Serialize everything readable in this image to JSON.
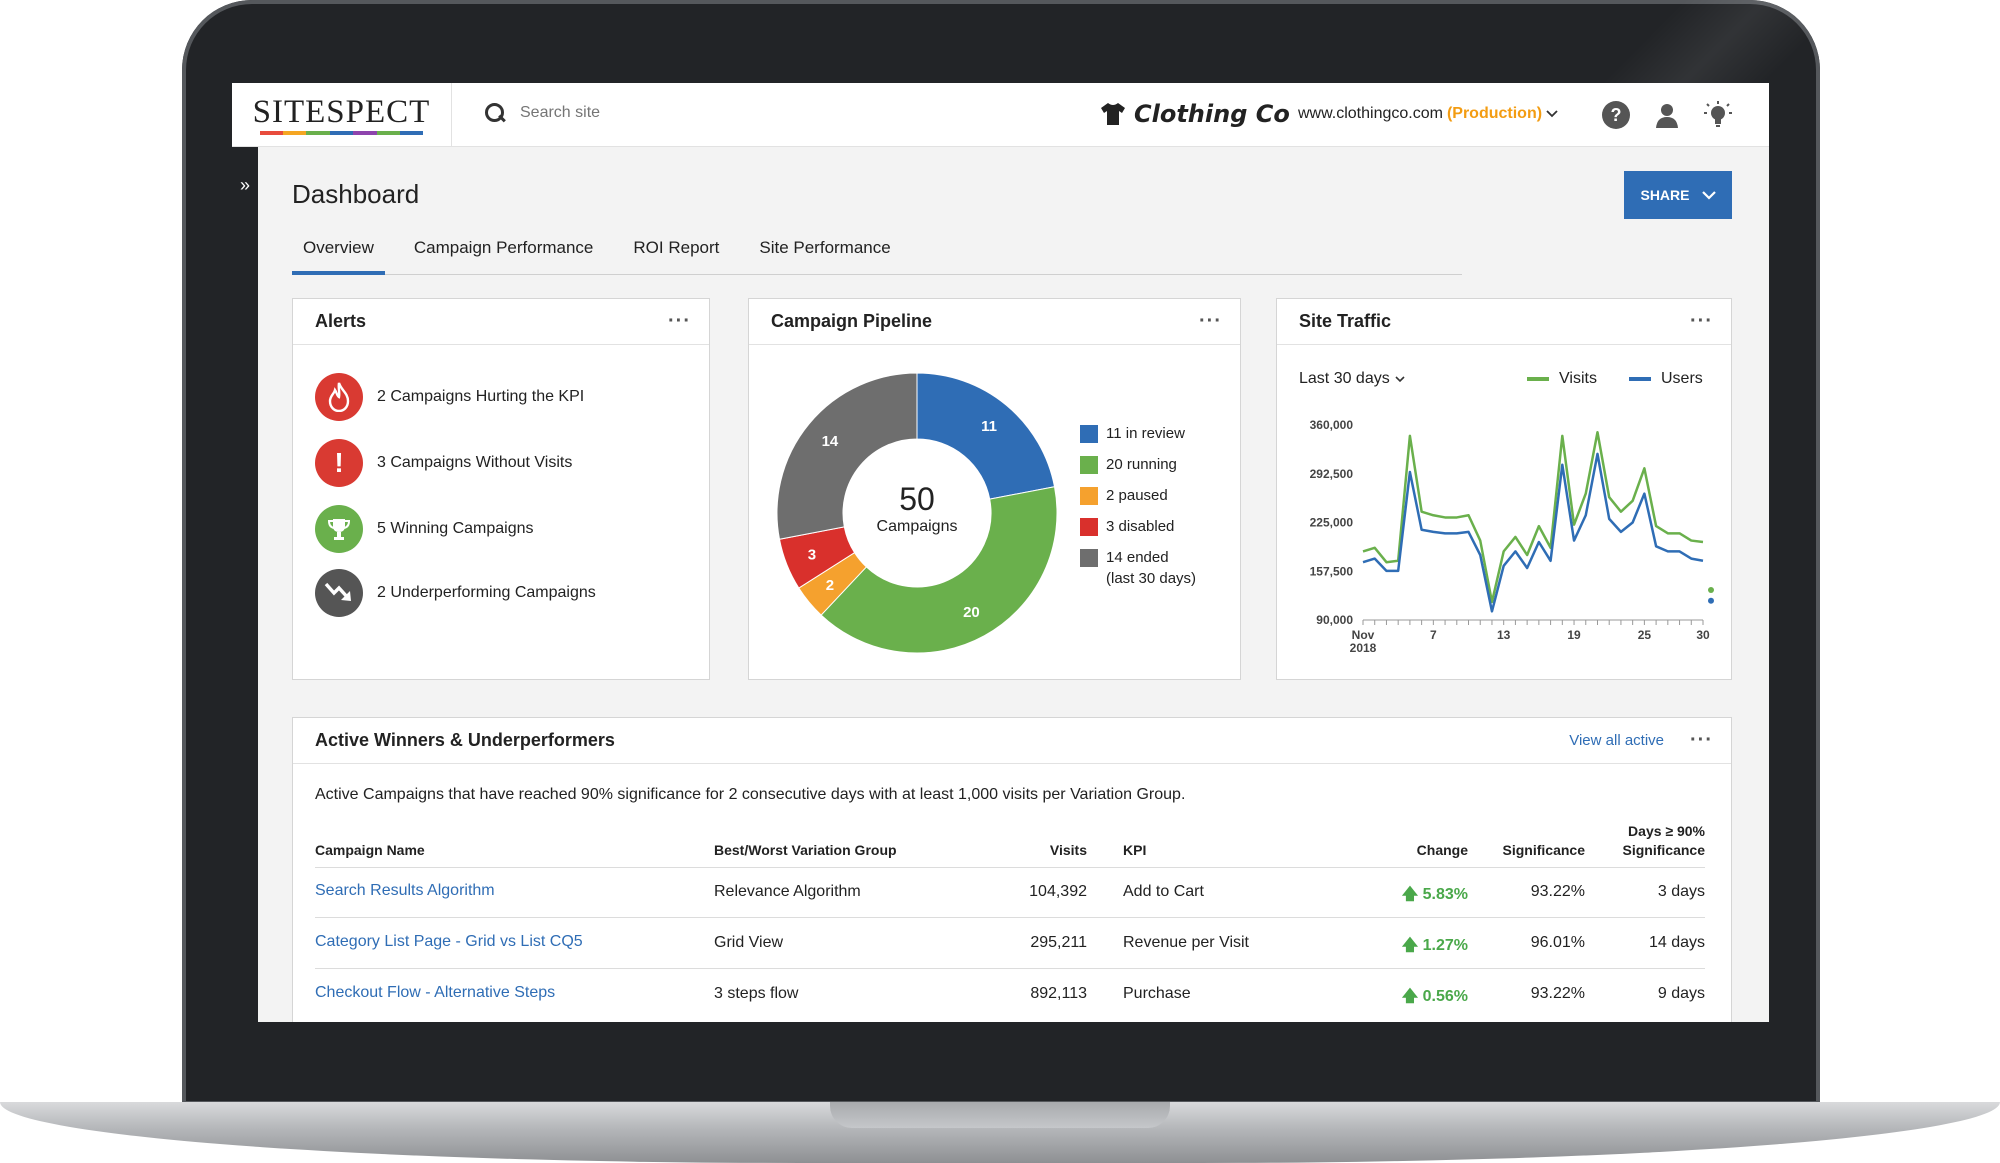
{
  "header": {
    "logo": "SITESPECT",
    "logo_bar_colors": [
      "#e84c3d",
      "#f5a623",
      "#6ab04c",
      "#2f6db5",
      "#8e44ad",
      "#6ab04c",
      "#2f6db5"
    ],
    "search_placeholder": "Search site",
    "brand_name": "Clothing Co",
    "site_url": "www.clothingco.com",
    "site_env": "(Production)",
    "help_icon": "question-circle-icon",
    "user_icon": "user-icon",
    "idea_icon": "lightbulb-icon"
  },
  "sidebar": {
    "toggle": "»"
  },
  "page": {
    "title": "Dashboard",
    "share_label": "SHARE",
    "tabs": [
      {
        "label": "Overview",
        "active": true
      },
      {
        "label": "Campaign Performance",
        "active": false
      },
      {
        "label": "ROI Report",
        "active": false
      },
      {
        "label": "Site Performance",
        "active": false
      }
    ]
  },
  "alerts": {
    "title": "Alerts",
    "items": [
      {
        "label": "2 Campaigns Hurting the KPI",
        "icon": "flame-icon",
        "color": "#d93a32"
      },
      {
        "label": "3 Campaigns Without Visits",
        "icon": "exclamation-icon",
        "color": "#d93a32"
      },
      {
        "label": "5 Winning Campaigns",
        "icon": "trophy-icon",
        "color": "#6ab04c"
      },
      {
        "label": "2 Underperforming Campaigns",
        "icon": "trend-down-icon",
        "color": "#555555"
      }
    ]
  },
  "pipeline": {
    "title": "Campaign Pipeline",
    "center_value": "50",
    "center_label": "Campaigns",
    "legend": [
      {
        "label": "11 in review",
        "color": "#2f6db5"
      },
      {
        "label": "20 running",
        "color": "#6ab04c"
      },
      {
        "label": "2 paused",
        "color": "#f5a12e"
      },
      {
        "label": "3 disabled",
        "color": "#d9302c"
      },
      {
        "label": "14 ended",
        "sub": "(last 30 days)",
        "color": "#6e6e6e"
      }
    ]
  },
  "traffic": {
    "title": "Site Traffic",
    "range_label": "Last 30 days",
    "legend": [
      {
        "name": "Visits",
        "color": "#6ab04c"
      },
      {
        "name": "Users",
        "color": "#2f6db5"
      }
    ]
  },
  "chart_data": [
    {
      "type": "pie",
      "title": "Campaign Pipeline",
      "categories": [
        "in review",
        "running",
        "paused",
        "disabled",
        "ended"
      ],
      "values": [
        11,
        20,
        2,
        3,
        14
      ],
      "colors": [
        "#2f6db5",
        "#6ab04c",
        "#f5a12e",
        "#d9302c",
        "#6e6e6e"
      ],
      "donut": true
    },
    {
      "type": "line",
      "title": "Site Traffic",
      "x": [
        1,
        2,
        3,
        4,
        5,
        6,
        7,
        8,
        9,
        10,
        11,
        12,
        13,
        14,
        15,
        16,
        17,
        18,
        19,
        20,
        21,
        22,
        23,
        24,
        25,
        26,
        27,
        28,
        29,
        30
      ],
      "xticks": [
        "Nov\n2018",
        "7",
        "13",
        "19",
        "25",
        "30"
      ],
      "xtick_positions": [
        1,
        7,
        13,
        19,
        25,
        30
      ],
      "yticks": [
        "360,000",
        "292,500",
        "225,000",
        "157,500",
        "90,000"
      ],
      "ytick_values": [
        360000,
        292500,
        225000,
        157500,
        90000
      ],
      "ylim": [
        90000,
        360000
      ],
      "grid": false,
      "series": [
        {
          "name": "Visits",
          "color": "#6ab04c",
          "values": [
            185000,
            190000,
            170000,
            172000,
            345000,
            240000,
            235000,
            232000,
            232000,
            235000,
            200000,
            115000,
            185000,
            205000,
            180000,
            220000,
            190000,
            345000,
            222000,
            265000,
            350000,
            260000,
            240000,
            255000,
            300000,
            220000,
            210000,
            210000,
            200000,
            198000
          ]
        },
        {
          "name": "Users",
          "color": "#2f6db5",
          "values": [
            170000,
            175000,
            158000,
            158000,
            295000,
            215000,
            212000,
            210000,
            210000,
            212000,
            180000,
            102000,
            165000,
            185000,
            162000,
            198000,
            172000,
            305000,
            200000,
            235000,
            320000,
            230000,
            212000,
            225000,
            265000,
            192000,
            185000,
            185000,
            175000,
            172000
          ]
        }
      ]
    }
  ],
  "winners": {
    "title": "Active Winners & Underperformers",
    "view_all": "View all active",
    "description": "Active Campaigns that have reached 90% significance for 2 consecutive days with at least 1,000 visits per Variation Group.",
    "columns": {
      "name": "Campaign Name",
      "group": "Best/Worst Variation Group",
      "visits": "Visits",
      "kpi": "KPI",
      "change": "Change",
      "significance": "Significance",
      "days_line1": "Days ≥ 90%",
      "days_line2": "Significance"
    },
    "rows": [
      {
        "name": "Search Results Algorithm",
        "group": "Relevance Algorithm",
        "visits": "104,392",
        "kpi": "Add to Cart",
        "change": "5.83%",
        "significance": "93.22%",
        "days": "3 days"
      },
      {
        "name": "Category List Page - Grid vs List CQ5",
        "group": "Grid View",
        "visits": "295,211",
        "kpi": "Revenue per Visit",
        "change": "1.27%",
        "significance": "96.01%",
        "days": "14 days"
      },
      {
        "name": "Checkout Flow - Alternative Steps",
        "group": "3 steps flow",
        "visits": "892,113",
        "kpi": "Purchase",
        "change": "0.56%",
        "significance": "93.22%",
        "days": "9 days"
      }
    ]
  }
}
